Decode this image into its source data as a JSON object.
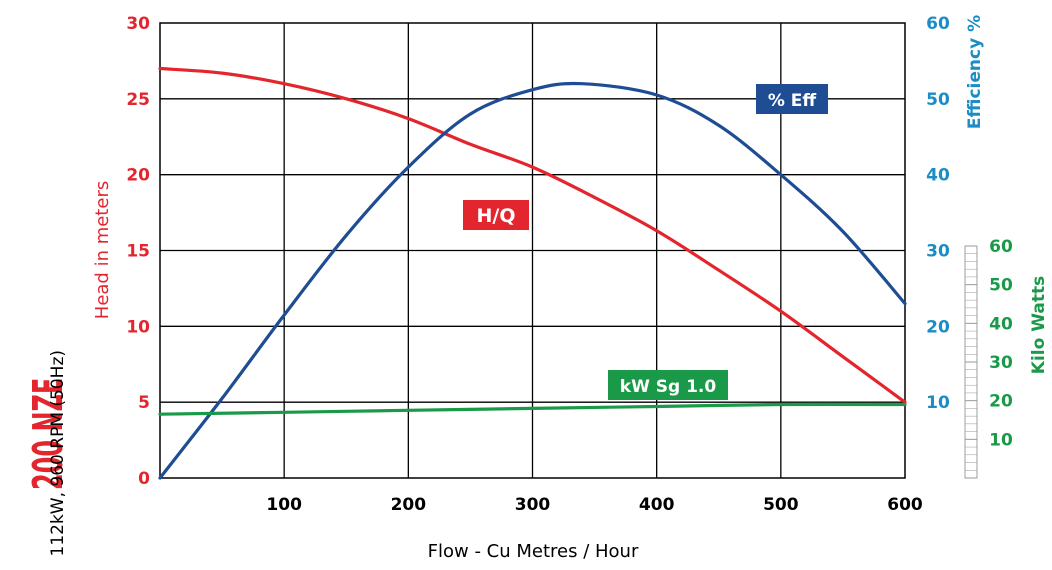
{
  "chart_data": {
    "type": "line",
    "title": "200 NZE",
    "subtitle": "112kW, 960 RPM (50Hz)",
    "xlabel": "Flow - Cu Metres / Hour",
    "xlim": [
      0,
      600
    ],
    "xticks": [
      "100",
      "200",
      "300",
      "400",
      "500",
      "600"
    ],
    "y_left": {
      "label": "Head in meters",
      "lim": [
        0,
        30
      ],
      "ticks": [
        "0",
        "5",
        "10",
        "15",
        "20",
        "25",
        "30"
      ],
      "color": "#e3262e"
    },
    "y_eff": {
      "label": "Efficiency %",
      "lim": [
        0,
        60
      ],
      "ticks": [
        "10",
        "20",
        "30",
        "40",
        "50",
        "60"
      ],
      "color": "#1b8dc4"
    },
    "y_kw": {
      "label": "Kilo Watts",
      "lim": [
        0,
        60
      ],
      "ticks": [
        "10",
        "20",
        "30",
        "40",
        "50",
        "60"
      ],
      "color": "#1a9a49"
    },
    "grid": true,
    "series": [
      {
        "name": "H/Q",
        "axis": "left",
        "color": "#e3262e",
        "x": [
          0,
          50,
          100,
          150,
          200,
          250,
          300,
          350,
          400,
          450,
          500,
          550,
          600
        ],
        "y": [
          27.0,
          26.7,
          26.0,
          25.0,
          23.7,
          22.0,
          20.5,
          18.5,
          16.3,
          13.7,
          11.0,
          8.0,
          5.0
        ]
      },
      {
        "name": "% Eff",
        "axis": "eff",
        "color": "#1e4d94",
        "x": [
          0,
          50,
          100,
          150,
          200,
          250,
          300,
          340,
          400,
          450,
          500,
          550,
          600
        ],
        "y": [
          0,
          10.5,
          21.5,
          32,
          41,
          48,
          51.2,
          52,
          50.5,
          46.5,
          40,
          32.5,
          23
        ]
      },
      {
        "name": "kW Sg 1.0",
        "axis": "kw",
        "color": "#1a9a49",
        "x": [
          0,
          100,
          200,
          300,
          400,
          500,
          600
        ],
        "y": [
          16.5,
          17,
          17.5,
          18,
          18.5,
          19,
          19
        ]
      }
    ]
  }
}
